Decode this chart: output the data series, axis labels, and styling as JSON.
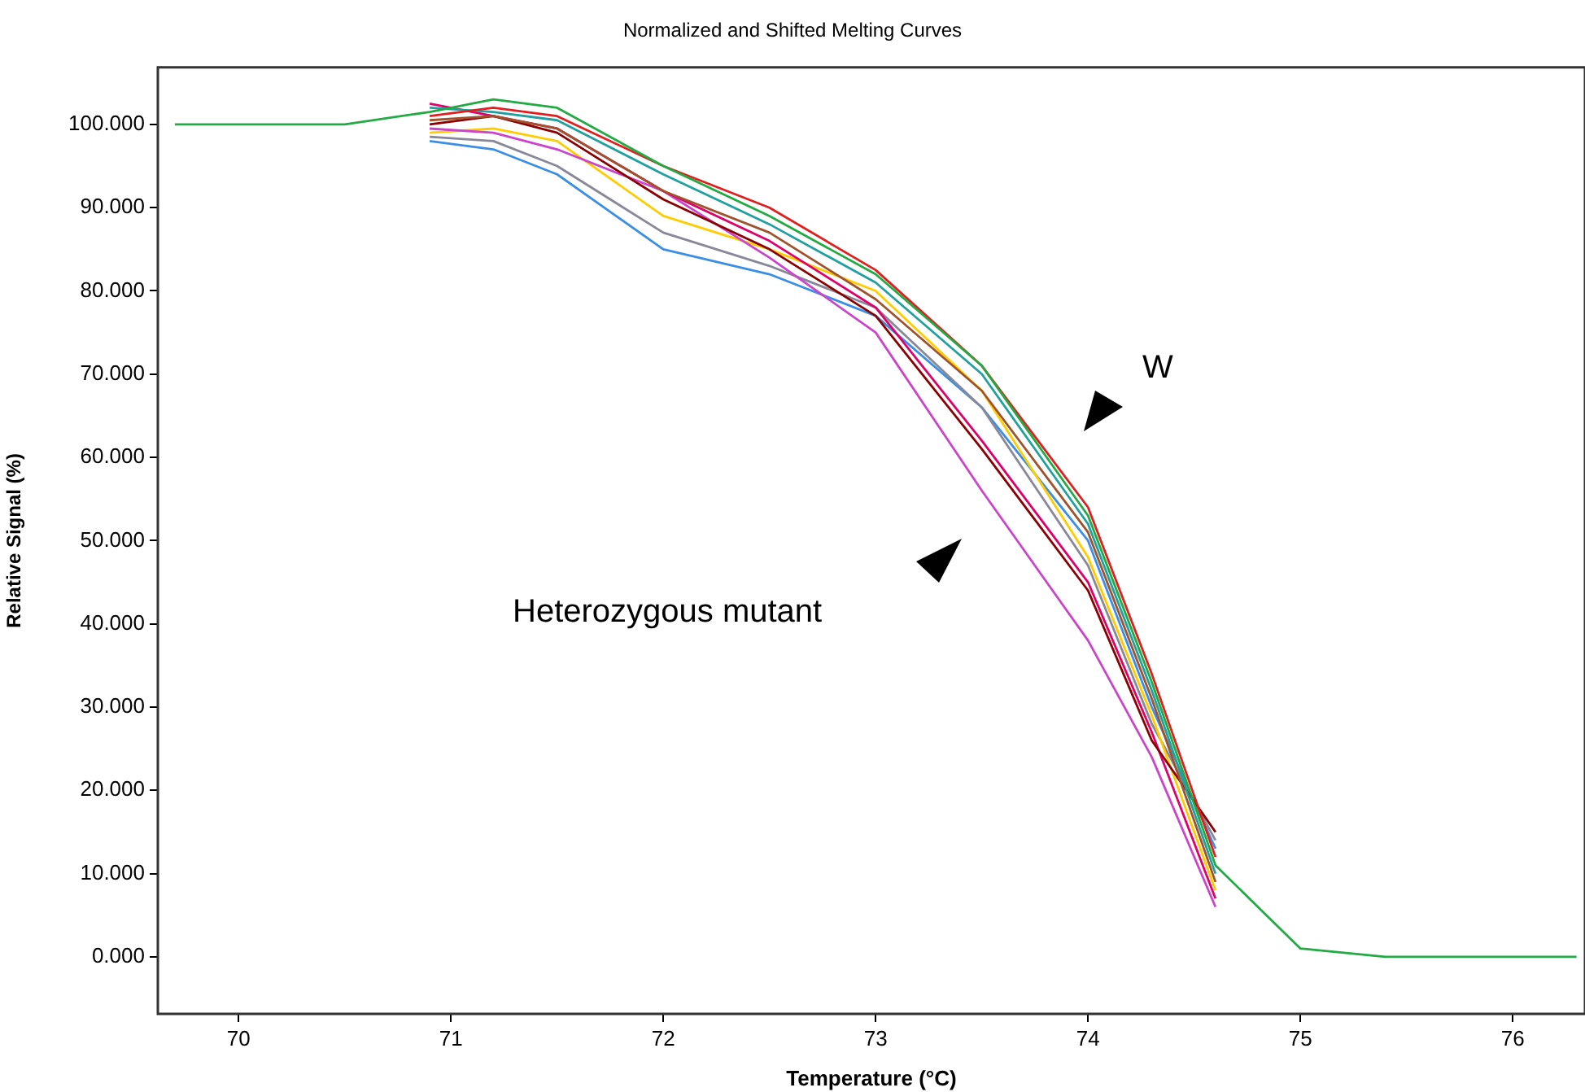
{
  "chart_data": {
    "type": "line",
    "title": "Normalized and Shifted Melting Curves",
    "xlabel": "Temperature (°C)",
    "ylabel": "Relative Signal (%)",
    "x": [
      69.7,
      70.5,
      70.9,
      71.2,
      71.5,
      72,
      72.5,
      73,
      73.5,
      74,
      74.3,
      74.6,
      75,
      75.4,
      76.3
    ],
    "xlim": [
      69.62,
      76.34
    ],
    "xticks": [
      70,
      71,
      72,
      73,
      74,
      75,
      76
    ],
    "ylim": [
      -6.85,
      106.85
    ],
    "yticks": [
      {
        "value": 0,
        "label": "0.000"
      },
      {
        "value": 10,
        "label": "10.000"
      },
      {
        "value": 20,
        "label": "20.000"
      },
      {
        "value": 30,
        "label": "30.000"
      },
      {
        "value": 40,
        "label": "40.000"
      },
      {
        "value": 50,
        "label": "50.000"
      },
      {
        "value": 60,
        "label": "60.000"
      },
      {
        "value": 70,
        "label": "70.000"
      },
      {
        "value": 80,
        "label": "80.000"
      },
      {
        "value": 90,
        "label": "90.000"
      },
      {
        "value": 100,
        "label": "100.000"
      }
    ],
    "grid": false,
    "legend": false,
    "marker": "none",
    "line_style": "solid",
    "series": [
      {
        "color": "#22aa44",
        "values": [
          100,
          100,
          101.5,
          103,
          102,
          95,
          89,
          82,
          71,
          53,
          33,
          11,
          1,
          0,
          0
        ]
      },
      {
        "color": "#e02020",
        "values": [
          null,
          null,
          101,
          102,
          101,
          95,
          90,
          82.5,
          71,
          54,
          34,
          12,
          null,
          null,
          null
        ]
      },
      {
        "color": "#20a0a0",
        "values": [
          null,
          null,
          102,
          101.5,
          100.5,
          94,
          88,
          81,
          70,
          52,
          32,
          10,
          null,
          null,
          null
        ]
      },
      {
        "color": "#a0522d",
        "values": [
          null,
          null,
          100.5,
          101,
          99.5,
          92,
          87,
          79,
          68,
          51,
          31,
          9,
          null,
          null,
          null
        ]
      },
      {
        "color": "#8b0000",
        "values": [
          null,
          null,
          100,
          101,
          99,
          91,
          85,
          77,
          61,
          44,
          26,
          15,
          null,
          null,
          null
        ]
      },
      {
        "color": "#e0006a",
        "values": [
          null,
          null,
          102.5,
          101,
          99.5,
          92,
          86,
          78,
          62,
          45,
          27,
          7,
          null,
          null,
          null
        ]
      },
      {
        "color": "#cc44cc",
        "values": [
          null,
          null,
          99.5,
          99,
          97,
          92,
          84,
          75,
          56,
          38,
          24,
          6,
          null,
          null,
          null
        ]
      },
      {
        "color": "#ffcc00",
        "values": [
          null,
          null,
          99,
          99.5,
          98,
          89,
          85,
          80,
          68,
          48,
          29,
          8,
          null,
          null,
          null
        ]
      },
      {
        "color": "#888899",
        "values": [
          null,
          null,
          98.5,
          98,
          95,
          87,
          83,
          78,
          66,
          47,
          28,
          14,
          null,
          null,
          null
        ]
      },
      {
        "color": "#3a8ee6",
        "values": [
          null,
          null,
          98,
          97,
          94,
          85,
          82,
          77,
          66,
          50,
          30,
          13,
          null,
          null,
          null
        ]
      }
    ],
    "annotations": [
      "W",
      "Heterozygous mutant"
    ]
  }
}
